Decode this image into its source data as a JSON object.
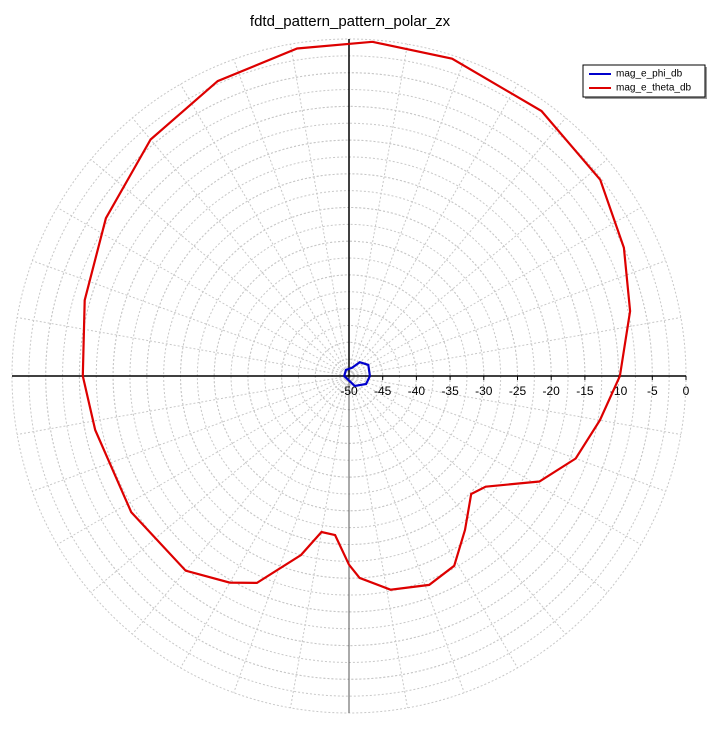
{
  "chart_data": {
    "type": "polar",
    "title": "fdtd_pattern_pattern_polar_zx",
    "rlim": [
      -50,
      0
    ],
    "rticks": [
      -50,
      -45,
      -40,
      -35,
      -30,
      -25,
      -20,
      -15,
      -10,
      -5,
      0
    ],
    "grid": true,
    "legend": "upper right",
    "series": [
      {
        "name": "mag_e_phi_db",
        "color": "#0000cc",
        "theta": [
          0,
          30,
          52,
          70,
          117,
          180,
          240,
          300,
          335,
          360
        ],
        "values": [
          -46.9,
          -46.7,
          -47.4,
          -48.7,
          -49.0,
          -49.3,
          -49.5,
          -48.3,
          -47.2,
          -46.9
        ]
      },
      {
        "name": "mag_e_theta_db",
        "color": "#dd0000",
        "theta": [
          0,
          13,
          25,
          38,
          54,
          72,
          86,
          99,
          114,
          130,
          147,
          164,
          180,
          192,
          212,
          230,
          240,
          246,
          255,
          260,
          265,
          270,
          273,
          281,
          291,
          299,
          307,
          316,
          321,
          331,
          340,
          350,
          360
        ],
        "values": [
          -9.8,
          -7.2,
          -5.0,
          -2.7,
          -1.4,
          -0.5,
          -0.3,
          -0.8,
          -2.1,
          -4.2,
          -7.0,
          -9.2,
          -10.5,
          -11.5,
          -11.9,
          -12.3,
          -14.6,
          -16.4,
          -22.5,
          -26.5,
          -26.3,
          -22.0,
          -20.0,
          -17.7,
          -16.8,
          -17.8,
          -21.4,
          -24.8,
          -23.9,
          -17.7,
          -14.2,
          -12.2,
          -9.8
        ]
      }
    ]
  }
}
